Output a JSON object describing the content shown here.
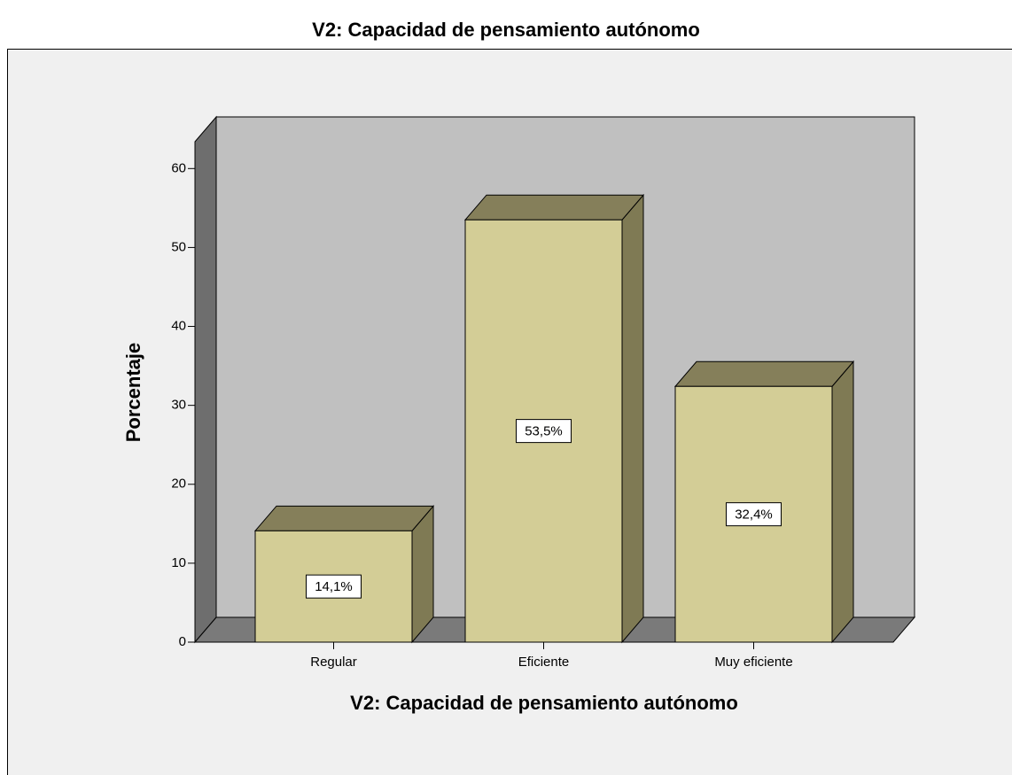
{
  "chart_data": {
    "type": "bar3d",
    "title": "V2: Capacidad de pensamiento autónomo",
    "x_label": "V2: Capacidad de pensamiento autónomo",
    "y_label": "Porcentaje",
    "categories": [
      "Regular",
      "Eficiente",
      "Muy eficiente"
    ],
    "values": [
      14.1,
      53.5,
      32.4
    ],
    "value_labels": [
      "14,1%",
      "53,5%",
      "32,4%"
    ],
    "color": "#d3cd96",
    "ylim": [
      0,
      63.4
    ],
    "yticks": [
      0,
      10,
      20,
      30,
      40,
      50,
      60
    ]
  }
}
